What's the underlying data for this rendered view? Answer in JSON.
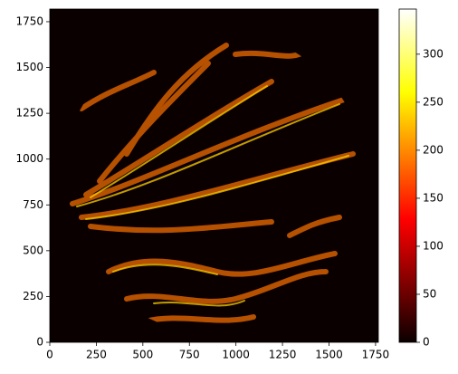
{
  "chart_data": {
    "type": "image",
    "xlim": [
      0,
      1765
    ],
    "ylim": [
      0,
      1819
    ],
    "xticks": [
      0,
      250,
      500,
      750,
      1000,
      1250,
      1500,
      1750
    ],
    "yticks": [
      0,
      250,
      500,
      750,
      1000,
      1250,
      1500,
      1750
    ],
    "colormap": "hot",
    "clim": [
      0,
      347
    ],
    "cticks": [
      0,
      50,
      100,
      150,
      200,
      250,
      300
    ]
  }
}
